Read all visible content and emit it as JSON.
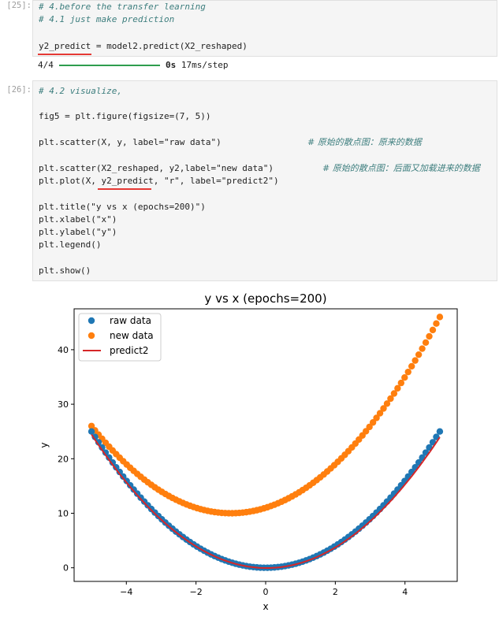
{
  "cell25": {
    "prompt": "[25]:",
    "lines": [
      "# 4.before the transfer learning",
      "# 4.1 just make prediction",
      "",
      "y2_predict = model2.predict(X2_reshaped)"
    ],
    "output_left": "4/4",
    "output_right_bold": "0s",
    "output_right": " 17ms/step",
    "progress_fraction": 1.0
  },
  "cell26": {
    "prompt": "[26]:",
    "comment": "# 4.2 visualize,",
    "fig_line": "fig5 = plt.figure(figsize=(7, 5))",
    "scatter1": "plt.scatter(X, y, label=\"raw data\")",
    "comment1": "# 原始的散点图：原来的数据",
    "scatter2": "plt.scatter(X2_reshaped, y2,label=\"new data\")",
    "comment2": "# 原始的散点图：后面又加载进来的数据",
    "plot_line": "plt.plot(X, y2_predict, \"r\", label=\"predict2\")",
    "title_line": "plt.title(\"y vs x (epochs=200)\")",
    "xlabel_line": "plt.xlabel(\"x\")",
    "ylabel_line": "plt.ylabel(\"y\")",
    "legend_line": "plt.legend()",
    "show_line": "plt.show()"
  },
  "colors": {
    "raw": "#1f77b4",
    "new": "#ff7f0e",
    "predict": "#d62728",
    "underline": "#e53935"
  },
  "chart_data": {
    "type": "scatter",
    "title": "y vs x (epochs=200)",
    "xlabel": "x",
    "ylabel": "y",
    "xlim": [
      -5.5,
      5.5
    ],
    "ylim": [
      -2.5,
      47.5
    ],
    "xticks": [
      -4,
      -2,
      0,
      2,
      4
    ],
    "yticks": [
      0,
      10,
      20,
      30,
      40
    ],
    "legend_position": "top-left",
    "grid": false,
    "series": [
      {
        "name": "raw data",
        "kind": "scatter",
        "color": "#1f77b4",
        "function": "y = x^2",
        "x_range": [
          -5,
          5
        ],
        "n_points": 100
      },
      {
        "name": "new data",
        "kind": "scatter",
        "color": "#ff7f0e",
        "function": "y = x^2 + 2x + 11",
        "x_range": [
          -5,
          5
        ],
        "n_points": 100
      },
      {
        "name": "predict2",
        "kind": "line",
        "color": "#d62728",
        "function": "y ≈ x^2",
        "x_range": [
          -5,
          5
        ]
      }
    ]
  }
}
